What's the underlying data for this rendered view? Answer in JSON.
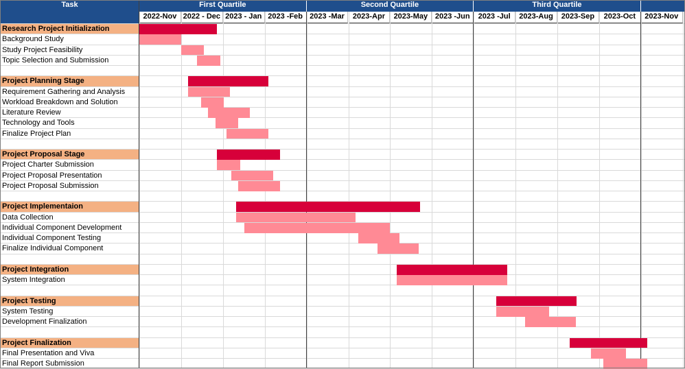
{
  "header": {
    "task": "Task",
    "quarters": [
      "First Quartile",
      "Second Quartile",
      "Third Quartile"
    ]
  },
  "chart_data": {
    "type": "gantt",
    "months": [
      "2022-Nov",
      "2022 - Dec",
      "2023 - Jan",
      "2023 -Feb",
      "2023 -Mar",
      "2023-Apr",
      "2023-May",
      "2023 -Jun",
      "2023 -Jul",
      "2023-Aug",
      "2023-Sep",
      "2023-Oct",
      "2023-Nov"
    ],
    "quarters": [
      {
        "label": "First Quartile",
        "from_month": 0,
        "to_month": 3
      },
      {
        "label": "Second Quartile",
        "from_month": 4,
        "to_month": 7
      },
      {
        "label": "Third Quartile",
        "from_month": 8,
        "to_month": 11
      }
    ],
    "colors": {
      "stage_bar": "#D7003A",
      "task_bar": "#FF8A95",
      "stage_label": "#F4B183",
      "header": "#1F4E8C"
    },
    "rows": [
      {
        "name": "Research Project Initialization",
        "kind": "stage",
        "start": 0.0,
        "end": 1.85
      },
      {
        "name": "Background Study",
        "kind": "task",
        "start": 0.0,
        "end": 1.0
      },
      {
        "name": "Study Project Feasibility",
        "kind": "task",
        "start": 1.0,
        "end": 1.55
      },
      {
        "name": "Topic Selection and Submission",
        "kind": "task",
        "start": 1.38,
        "end": 1.93
      },
      {
        "name": "",
        "kind": "blank"
      },
      {
        "name": "Project Planning Stage",
        "kind": "stage",
        "start": 1.17,
        "end": 3.08
      },
      {
        "name": "Requirement Gathering and Analysis",
        "kind": "task",
        "start": 1.17,
        "end": 2.17
      },
      {
        "name": "Workload Breakdown and Solution",
        "kind": "task",
        "start": 1.48,
        "end": 2.02
      },
      {
        "name": "Literature Review",
        "kind": "task",
        "start": 1.65,
        "end": 2.65
      },
      {
        "name": "Technology and Tools",
        "kind": "task",
        "start": 1.82,
        "end": 2.36
      },
      {
        "name": "Finalize Project Plan",
        "kind": "task",
        "start": 2.08,
        "end": 3.08
      },
      {
        "name": "",
        "kind": "blank"
      },
      {
        "name": "Project Proposal Stage",
        "kind": "stage",
        "start": 1.86,
        "end": 3.37
      },
      {
        "name": "Project Charter Submission",
        "kind": "task",
        "start": 1.86,
        "end": 2.41
      },
      {
        "name": "Project Proposal Presentation",
        "kind": "task",
        "start": 2.2,
        "end": 3.2
      },
      {
        "name": "Project Proposal Submission",
        "kind": "task",
        "start": 2.37,
        "end": 3.37
      },
      {
        "name": "",
        "kind": "blank"
      },
      {
        "name": "Project Implementaion",
        "kind": "stage",
        "start": 2.32,
        "end": 6.72
      },
      {
        "name": "Data Collection",
        "kind": "task",
        "start": 2.32,
        "end": 5.18
      },
      {
        "name": "Individual Component Development",
        "kind": "task",
        "start": 2.52,
        "end": 6.0
      },
      {
        "name": "Individual Component Testing",
        "kind": "task",
        "start": 5.23,
        "end": 6.23
      },
      {
        "name": "Finalize Individual Component",
        "kind": "task",
        "start": 5.69,
        "end": 6.69
      },
      {
        "name": "",
        "kind": "blank"
      },
      {
        "name": "Project Integration",
        "kind": "stage",
        "start": 6.16,
        "end": 8.8
      },
      {
        "name": "System Integration",
        "kind": "task",
        "start": 6.16,
        "end": 8.8
      },
      {
        "name": "",
        "kind": "blank"
      },
      {
        "name": "Project Testing",
        "kind": "stage",
        "start": 8.54,
        "end": 10.46
      },
      {
        "name": "System Testing",
        "kind": "task",
        "start": 8.54,
        "end": 9.8
      },
      {
        "name": "Development Finalization",
        "kind": "task",
        "start": 9.23,
        "end": 10.44
      },
      {
        "name": "",
        "kind": "blank"
      },
      {
        "name": "Project Finalization",
        "kind": "stage",
        "start": 10.3,
        "end": 12.15
      },
      {
        "name": "Final Presentation and Viva",
        "kind": "task",
        "start": 10.8,
        "end": 11.65
      },
      {
        "name": "Final Report Submission",
        "kind": "task",
        "start": 11.1,
        "end": 12.15
      }
    ]
  }
}
